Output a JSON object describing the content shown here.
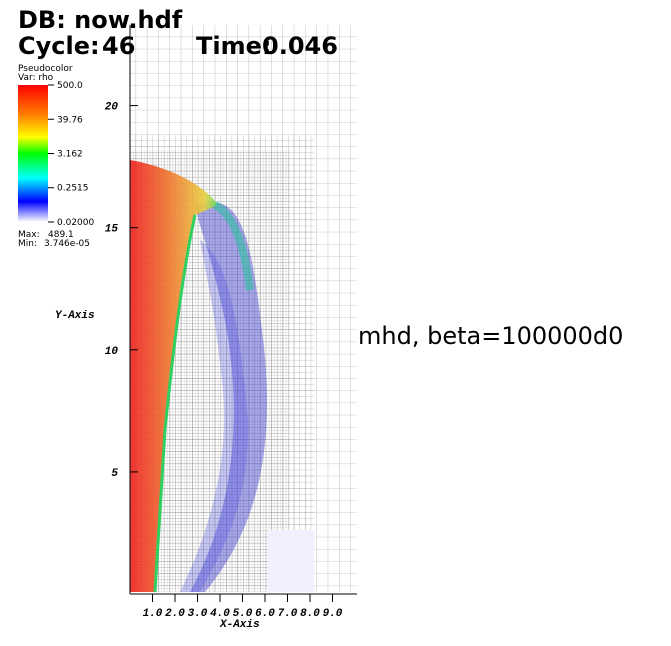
{
  "chart_data": {
    "type": "pseudocolor",
    "db": "DB: now.hdf",
    "cycle_label": "Cycle:",
    "cycle": 46,
    "time_label": "Time:",
    "time": 0.046,
    "annotation": "mhd, beta=100000d0",
    "x_label": "X-Axis",
    "y_label": "Y-Axis",
    "xlim": [
      0,
      10
    ],
    "ylim": [
      0,
      23.3
    ],
    "xticks": [
      {
        "value": 1,
        "label": "1.0"
      },
      {
        "value": 2,
        "label": "2.0"
      },
      {
        "value": 3,
        "label": "3.0"
      },
      {
        "value": 4,
        "label": "4.0"
      },
      {
        "value": 5,
        "label": "5.0"
      },
      {
        "value": 6,
        "label": "6.0"
      },
      {
        "value": 7,
        "label": "7.0"
      },
      {
        "value": 8,
        "label": "8.0"
      },
      {
        "value": 9,
        "label": "9.0"
      }
    ],
    "yticks": [
      5,
      10,
      15,
      20
    ],
    "legend": {
      "plot": "Pseudocolor",
      "var": "Var: rho",
      "log_scale": true,
      "range": [
        0.02,
        500
      ],
      "ticks": [
        {
          "value": 500,
          "label": "500.0"
        },
        {
          "value": 39.76,
          "label": "39.76"
        },
        {
          "value": 3.162,
          "label": "3.162"
        },
        {
          "value": 0.2515,
          "label": "0.2515"
        },
        {
          "value": 0.02,
          "label": "0.02000"
        }
      ],
      "max_label": "Max:",
      "max": 489.1,
      "min_label": "Min:",
      "min": {
        "value": 3.746e-05,
        "label": "3.746e-05"
      }
    }
  }
}
